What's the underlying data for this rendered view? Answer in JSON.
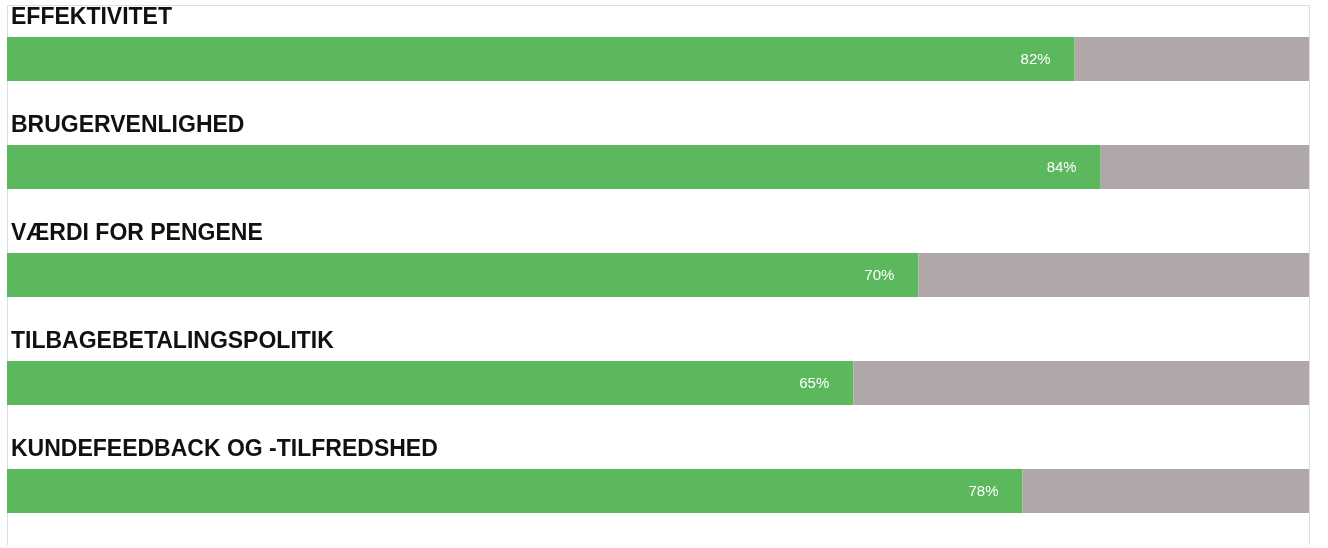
{
  "chart_data": {
    "type": "bar",
    "orientation": "horizontal",
    "stacked": true,
    "categories": [
      "EFFEKTIVITET",
      "BRUGERVENLIGHED",
      "VÆRDI FOR PENGENE",
      "TILBAGEBETALINGSPOLITIK",
      "KUNDEFEEDBACK OG -TILFREDSHED"
    ],
    "series": [
      {
        "color": "#5cb85c",
        "values": [
          82,
          84,
          70,
          65,
          78
        ],
        "value_labels": [
          "82%",
          "84%",
          "70%",
          "65%",
          "78%"
        ]
      },
      {
        "color": "#b0a8a8",
        "values": [
          18,
          16,
          30,
          35,
          22
        ]
      }
    ],
    "xlim": [
      0,
      100
    ],
    "tick_labels": false
  }
}
